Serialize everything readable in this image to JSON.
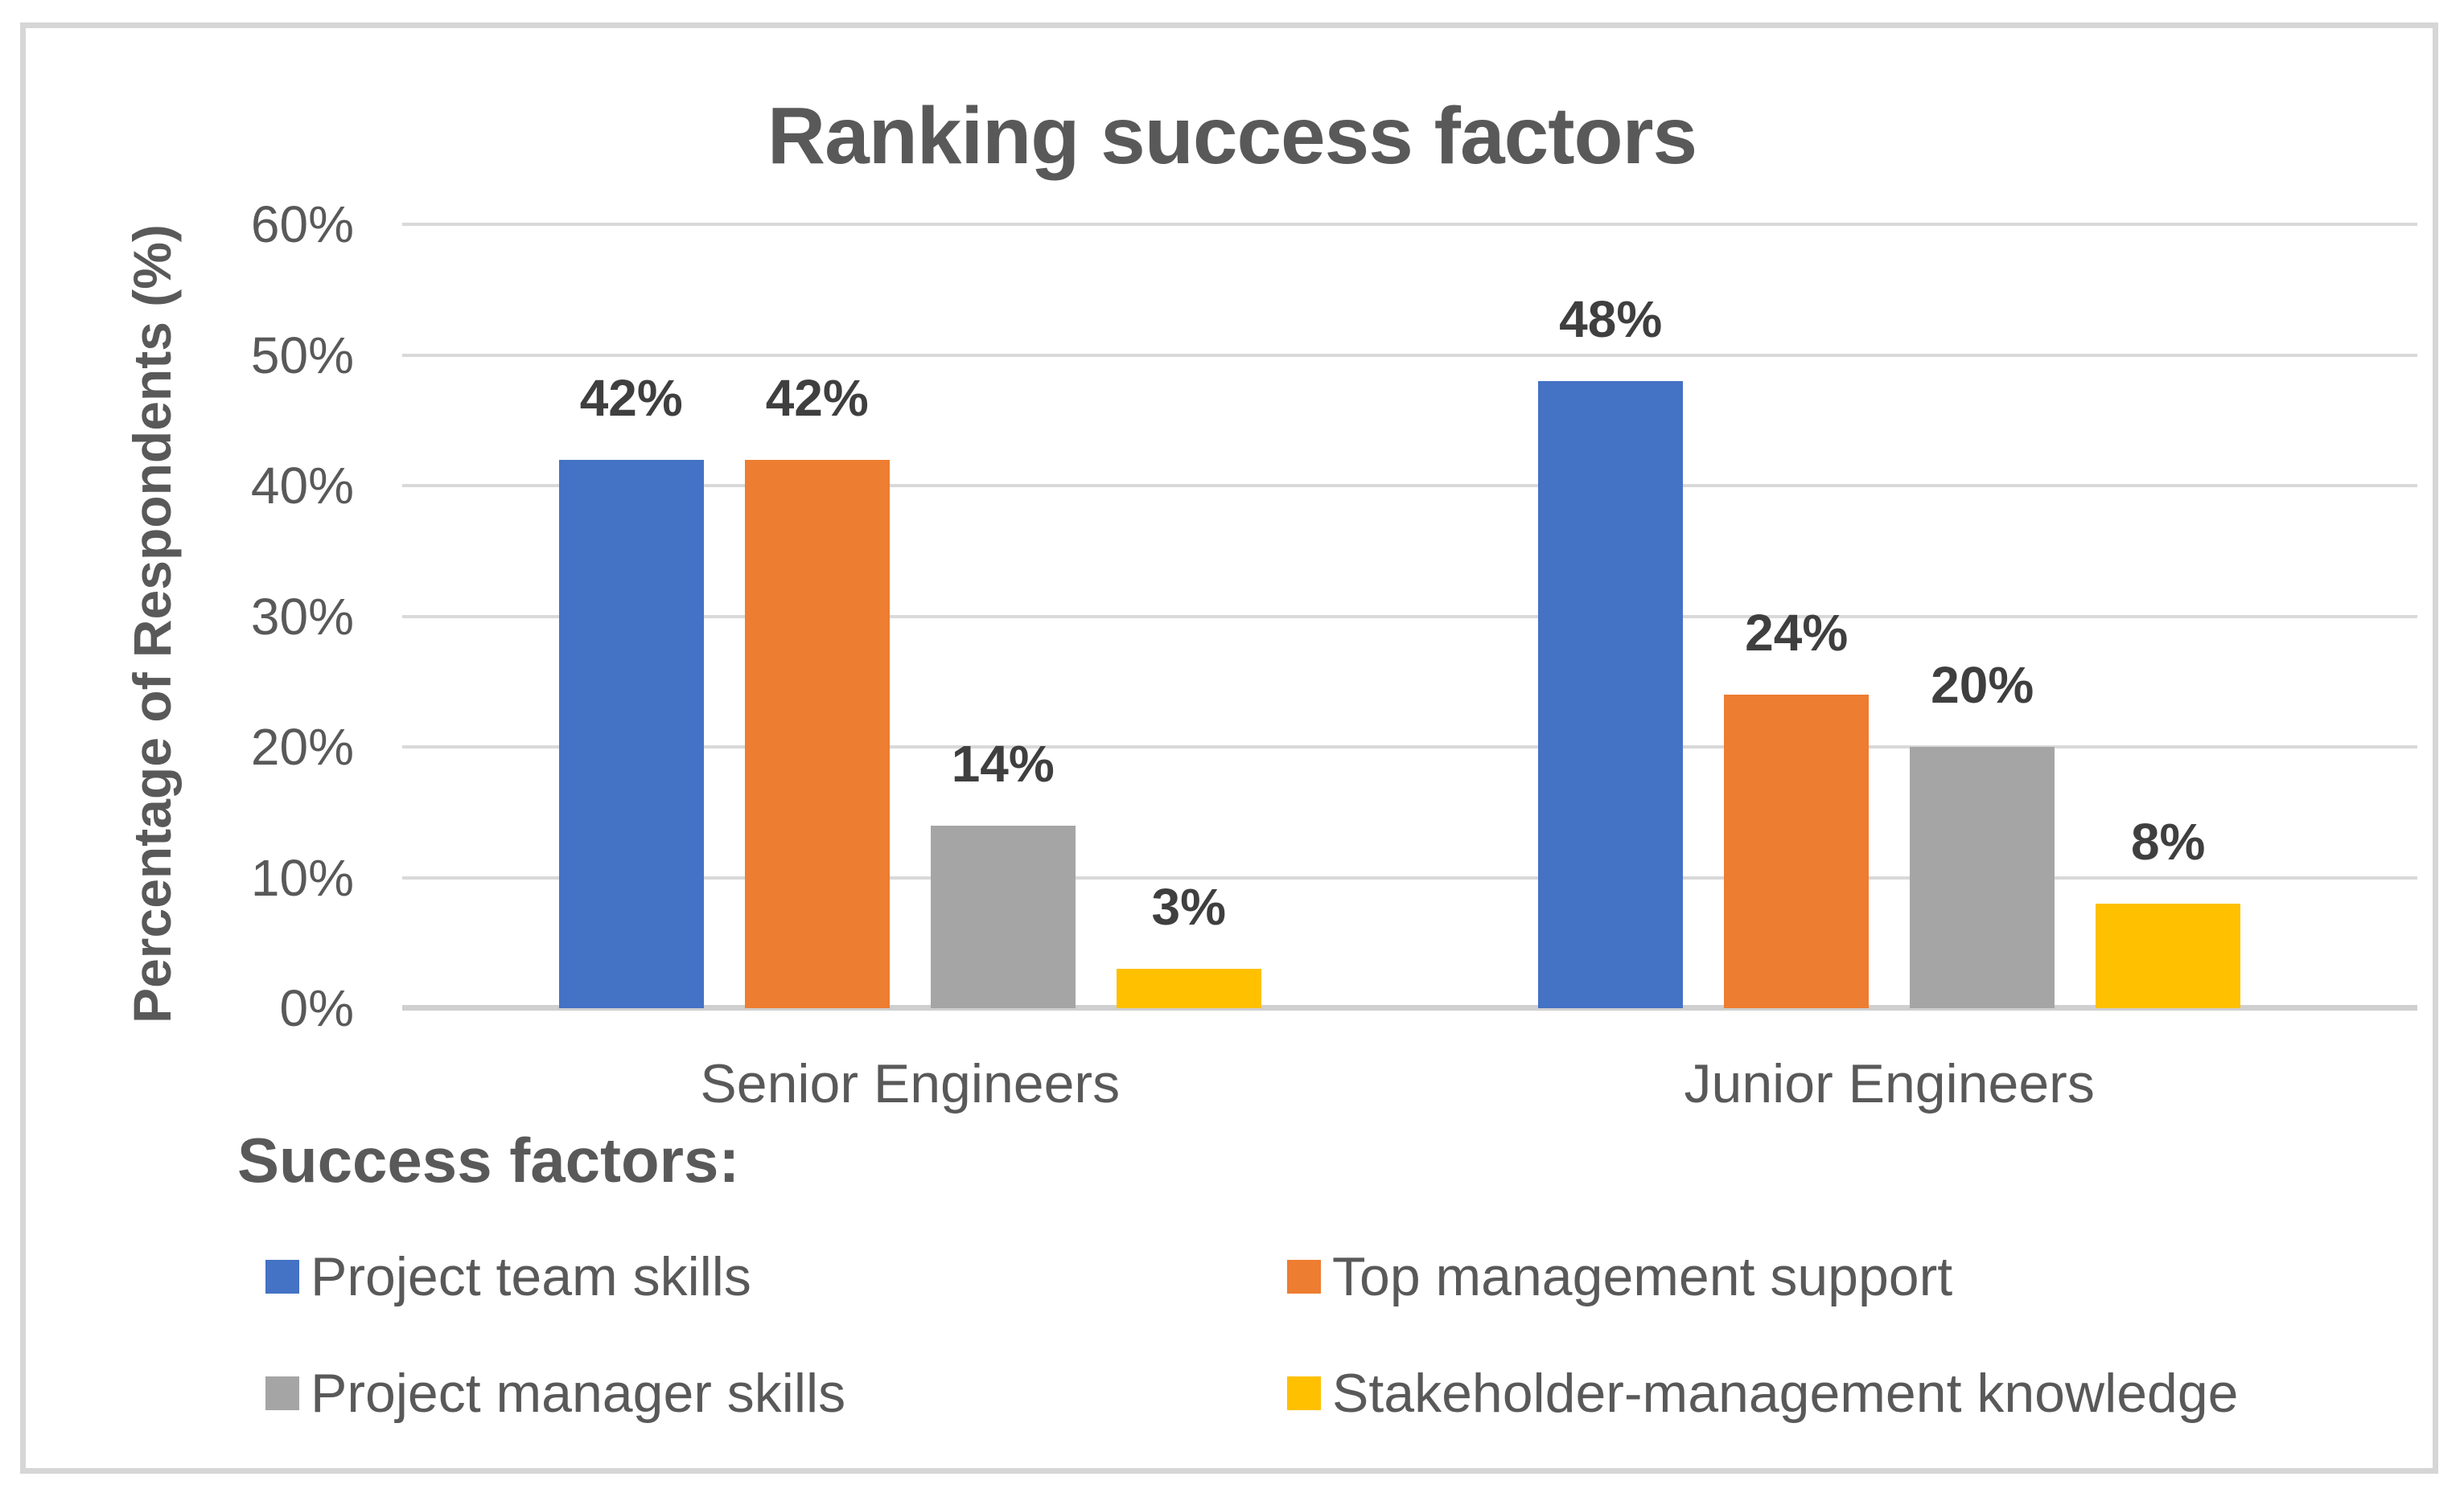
{
  "chart_data": {
    "type": "bar",
    "title": "Ranking success factors",
    "ylabel": "Percentage of Respondents (%)",
    "xlabel": "",
    "categories": [
      "Senior Engineers",
      "Junior Engineers"
    ],
    "series": [
      {
        "name": "Project team skills",
        "color": "#4472C4",
        "values": [
          42,
          48
        ],
        "labels": [
          "42%",
          "48%"
        ]
      },
      {
        "name": "Top management support",
        "color": "#ED7D31",
        "values": [
          42,
          24
        ],
        "labels": [
          "42%",
          "24%"
        ]
      },
      {
        "name": "Project manager skills",
        "color": "#A5A5A5",
        "values": [
          14,
          20
        ],
        "labels": [
          "14%",
          "20%"
        ]
      },
      {
        "name": "Stakeholder-management knowledge",
        "color": "#FFC000",
        "values": [
          3,
          8
        ],
        "labels": [
          "3%",
          "8%"
        ]
      }
    ],
    "ylim": [
      0,
      60
    ],
    "yticks": [
      "0%",
      "10%",
      "20%",
      "30%",
      "40%",
      "50%",
      "60%"
    ],
    "grid": true,
    "gridline_color": "#d9d9d9",
    "axis_line_color": "#cfcfcf",
    "text_color": "#595959",
    "data_label_color": "#3f3f3f",
    "legend_position": "bottom"
  },
  "legend": {
    "title": "Success factors:"
  }
}
